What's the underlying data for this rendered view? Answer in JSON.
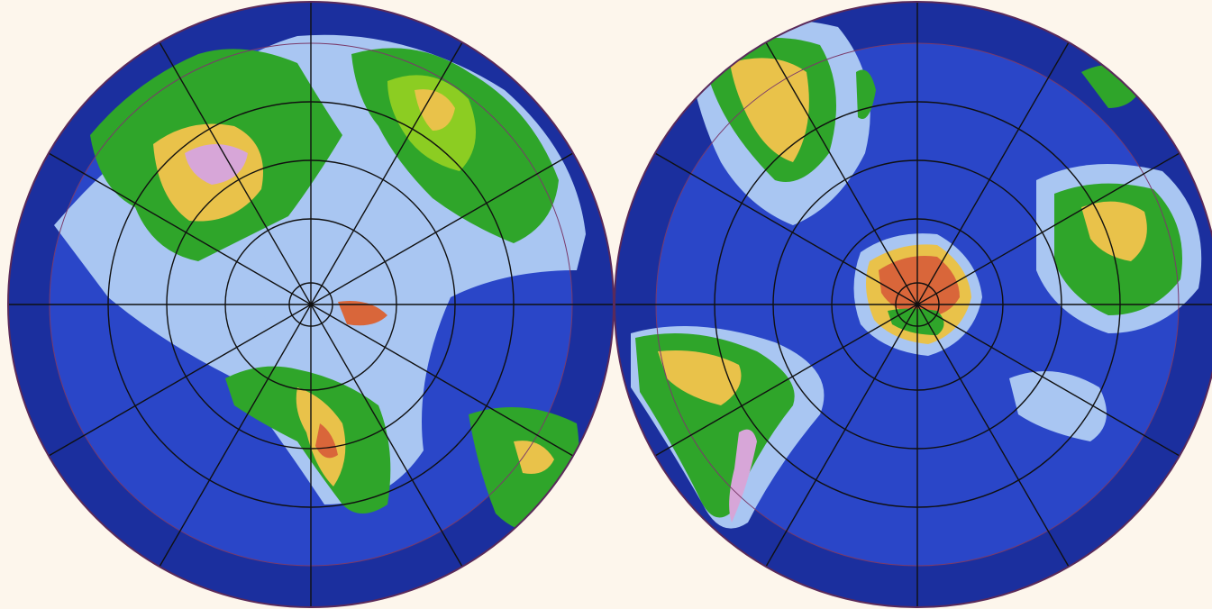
{
  "map": {
    "projection": "polar azimuthal",
    "hemispheres": [
      {
        "id": "northern",
        "pole": "north"
      },
      {
        "id": "southern",
        "pole": "south"
      }
    ],
    "graticule": {
      "meridian_step_deg": 30,
      "parallel_step_deg": 15
    },
    "colors": {
      "background": "#fdf6ec",
      "deep_ocean": "#1b2f9e",
      "ocean": "#2a46c8",
      "shelf": "#a9c6f2",
      "lowland": "#2fa52a",
      "upland": "#8ccd22",
      "highland": "#e9c24a",
      "mountain": "#d9663a",
      "peak": "#d7a6d8",
      "graticule": "#101010",
      "outline": "#5a2a5a"
    }
  }
}
